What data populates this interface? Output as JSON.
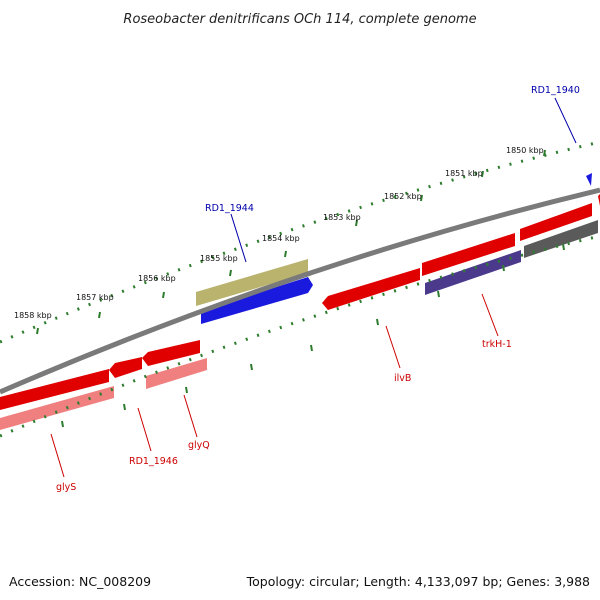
{
  "title": "Roseobacter denitrificans OCh 114, complete genome",
  "footer": {
    "accession": "Accession: NC_008209",
    "summary": "Topology: circular; Length: 4,133,097 bp; Genes: 3,988"
  },
  "colors": {
    "forward_cds": "#ff0000",
    "reverse_cds": "#ff0000",
    "forward_cds_light": "#f08080",
    "reverse_cds_purple": "#4b3a8c",
    "reverse_cds_blue": "#1a1adf",
    "gray_gene": "#5a5a5a",
    "olive_gene": "#b9b36e",
    "backbone": "#7a7a7a",
    "tick_green": "#2e7d2e",
    "label_red": "#cc0000",
    "label_blue": "#0000aa"
  },
  "kbp_labels": [
    {
      "text": "1850 kbp"
    },
    {
      "text": "1851 kbp"
    },
    {
      "text": "1852 kbp"
    },
    {
      "text": "1853 kbp"
    },
    {
      "text": "1854 kbp"
    },
    {
      "text": "1855 kbp"
    },
    {
      "text": "1856 kbp"
    },
    {
      "text": "1857 kbp"
    },
    {
      "text": "1858 kbp"
    }
  ],
  "genes": [
    {
      "name": "RD1_1940",
      "strand": "reverse"
    },
    {
      "name": "RD1_1944",
      "strand": "reverse"
    },
    {
      "name": "trkH-1",
      "strand": "reverse"
    },
    {
      "name": "ilvB",
      "strand": "forward"
    },
    {
      "name": "glyQ",
      "strand": "forward"
    },
    {
      "name": "RD1_1946",
      "strand": "forward"
    },
    {
      "name": "glyS",
      "strand": "forward"
    }
  ]
}
